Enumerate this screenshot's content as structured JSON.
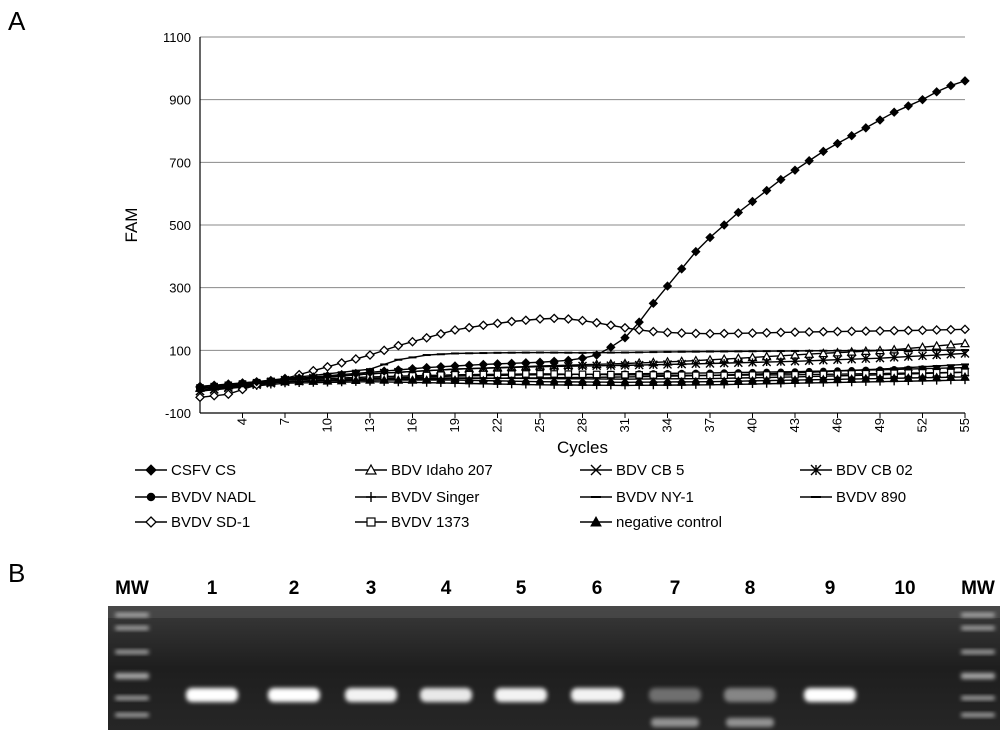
{
  "panels": {
    "a_label": "A",
    "b_label": "B"
  },
  "chart_data": {
    "type": "line",
    "xlabel": "Cycles",
    "ylabel": "FAM",
    "xlim": [
      1,
      55
    ],
    "ylim": [
      -100,
      1100
    ],
    "y_ticks": [
      -100,
      100,
      300,
      500,
      700,
      900,
      1100
    ],
    "x_tick_labels": [
      "4",
      "7",
      "10",
      "13",
      "16",
      "19",
      "22",
      "25",
      "28",
      "31",
      "34",
      "37",
      "40",
      "43",
      "46",
      "49",
      "52",
      "55"
    ],
    "grid": "horizontal",
    "legend_position": "bottom",
    "legend_columns": 4,
    "series": [
      {
        "name": "CSFV CS",
        "marker": "diamond-filled",
        "points": [
          [
            1,
            -15
          ],
          [
            5,
            0
          ],
          [
            9,
            15
          ],
          [
            13,
            30
          ],
          [
            17,
            45
          ],
          [
            21,
            55
          ],
          [
            25,
            62
          ],
          [
            27,
            68
          ],
          [
            28,
            75
          ],
          [
            29,
            85
          ],
          [
            30,
            110
          ],
          [
            31,
            140
          ],
          [
            32,
            190
          ],
          [
            33,
            250
          ],
          [
            34,
            305
          ],
          [
            35,
            360
          ],
          [
            36,
            415
          ],
          [
            37,
            460
          ],
          [
            38,
            500
          ],
          [
            39,
            540
          ],
          [
            40,
            575
          ],
          [
            41,
            610
          ],
          [
            42,
            645
          ],
          [
            43,
            675
          ],
          [
            44,
            705
          ],
          [
            45,
            735
          ],
          [
            46,
            760
          ],
          [
            47,
            785
          ],
          [
            48,
            810
          ],
          [
            49,
            835
          ],
          [
            50,
            860
          ],
          [
            51,
            880
          ],
          [
            52,
            900
          ],
          [
            53,
            925
          ],
          [
            54,
            945
          ],
          [
            55,
            960
          ]
        ]
      },
      {
        "name": "BDV Idaho 207",
        "marker": "triangle-open",
        "points": [
          [
            1,
            -20
          ],
          [
            7,
            5
          ],
          [
            13,
            25
          ],
          [
            19,
            40
          ],
          [
            25,
            50
          ],
          [
            31,
            58
          ],
          [
            35,
            65
          ],
          [
            38,
            72
          ],
          [
            41,
            80
          ],
          [
            44,
            88
          ],
          [
            47,
            95
          ],
          [
            50,
            102
          ],
          [
            52,
            110
          ],
          [
            54,
            118
          ],
          [
            55,
            122
          ]
        ]
      },
      {
        "name": "BDV CB 5",
        "marker": "x",
        "points": [
          [
            1,
            -30
          ],
          [
            7,
            0
          ],
          [
            13,
            10
          ],
          [
            19,
            12
          ],
          [
            25,
            10
          ],
          [
            31,
            8
          ],
          [
            37,
            10
          ],
          [
            43,
            15
          ],
          [
            49,
            22
          ],
          [
            55,
            30
          ]
        ]
      },
      {
        "name": "BDV CB 02",
        "marker": "asterisk",
        "points": [
          [
            1,
            -30
          ],
          [
            7,
            5
          ],
          [
            13,
            25
          ],
          [
            19,
            40
          ],
          [
            25,
            48
          ],
          [
            31,
            52
          ],
          [
            37,
            58
          ],
          [
            43,
            65
          ],
          [
            49,
            75
          ],
          [
            55,
            90
          ]
        ]
      },
      {
        "name": "BVDV NADL",
        "marker": "circle-filled",
        "points": [
          [
            1,
            -25
          ],
          [
            7,
            0
          ],
          [
            13,
            10
          ],
          [
            19,
            18
          ],
          [
            25,
            22
          ],
          [
            31,
            25
          ],
          [
            37,
            28
          ],
          [
            43,
            32
          ],
          [
            49,
            38
          ],
          [
            55,
            45
          ]
        ]
      },
      {
        "name": "BVDV Singer",
        "marker": "plus",
        "points": [
          [
            1,
            -30
          ],
          [
            7,
            -5
          ],
          [
            13,
            0
          ],
          [
            19,
            -5
          ],
          [
            25,
            -10
          ],
          [
            31,
            -12
          ],
          [
            37,
            -10
          ],
          [
            43,
            -5
          ],
          [
            49,
            0
          ],
          [
            55,
            5
          ]
        ]
      },
      {
        "name": "BVDV NY-1",
        "marker": "dash",
        "points": [
          [
            1,
            -20
          ],
          [
            7,
            10
          ],
          [
            13,
            40
          ],
          [
            15,
            70
          ],
          [
            17,
            85
          ],
          [
            19,
            90
          ],
          [
            22,
            92
          ],
          [
            25,
            93
          ],
          [
            28,
            92
          ],
          [
            31,
            93
          ],
          [
            34,
            95
          ],
          [
            37,
            96
          ],
          [
            40,
            97
          ],
          [
            43,
            98
          ],
          [
            46,
            99
          ],
          [
            49,
            100
          ],
          [
            52,
            100
          ],
          [
            55,
            101
          ]
        ]
      },
      {
        "name": "BVDV 890",
        "marker": "dash",
        "points": [
          [
            1,
            -20
          ],
          [
            7,
            0
          ],
          [
            13,
            5
          ],
          [
            19,
            10
          ],
          [
            25,
            12
          ],
          [
            31,
            15
          ],
          [
            37,
            20
          ],
          [
            43,
            28
          ],
          [
            49,
            40
          ],
          [
            55,
            55
          ]
        ]
      },
      {
        "name": "BVDV SD-1",
        "marker": "diamond-open",
        "points": [
          [
            1,
            -50
          ],
          [
            3,
            -40
          ],
          [
            5,
            -10
          ],
          [
            7,
            10
          ],
          [
            9,
            35
          ],
          [
            11,
            60
          ],
          [
            13,
            85
          ],
          [
            15,
            115
          ],
          [
            17,
            140
          ],
          [
            19,
            165
          ],
          [
            21,
            180
          ],
          [
            23,
            192
          ],
          [
            25,
            200
          ],
          [
            26,
            202
          ],
          [
            27,
            200
          ],
          [
            28,
            195
          ],
          [
            29,
            188
          ],
          [
            30,
            180
          ],
          [
            31,
            172
          ],
          [
            32,
            165
          ],
          [
            33,
            160
          ],
          [
            34,
            157
          ],
          [
            35,
            155
          ],
          [
            37,
            153
          ],
          [
            40,
            155
          ],
          [
            43,
            158
          ],
          [
            46,
            160
          ],
          [
            49,
            162
          ],
          [
            52,
            164
          ],
          [
            55,
            167
          ]
        ]
      },
      {
        "name": "BVDV 1373",
        "marker": "square-open",
        "points": [
          [
            1,
            -20
          ],
          [
            7,
            5
          ],
          [
            13,
            15
          ],
          [
            19,
            22
          ],
          [
            25,
            25
          ],
          [
            31,
            22
          ],
          [
            37,
            20
          ],
          [
            43,
            22
          ],
          [
            49,
            26
          ],
          [
            55,
            30
          ]
        ]
      },
      {
        "name": "negative control",
        "marker": "triangle-filled",
        "points": [
          [
            1,
            -20
          ],
          [
            7,
            0
          ],
          [
            13,
            5
          ],
          [
            19,
            5
          ],
          [
            25,
            0
          ],
          [
            31,
            -2
          ],
          [
            37,
            0
          ],
          [
            43,
            5
          ],
          [
            49,
            10
          ],
          [
            55,
            15
          ]
        ]
      }
    ]
  },
  "gel": {
    "lane_labels": [
      "MW",
      "1",
      "2",
      "3",
      "4",
      "5",
      "6",
      "7",
      "8",
      "9",
      "10",
      "MW"
    ],
    "lane_band_intensity": [
      null,
      1.0,
      1.0,
      0.95,
      0.9,
      0.95,
      0.95,
      0.35,
      0.45,
      1.0,
      0.0,
      null
    ]
  }
}
